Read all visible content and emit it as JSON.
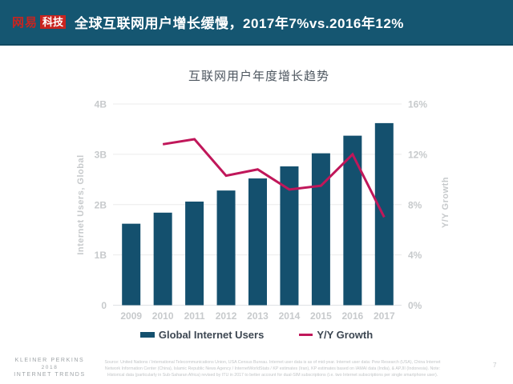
{
  "header": {
    "logo": {
      "brand": "网易",
      "badge": "科技"
    },
    "title": "全球互联网用户增长缓慢，2017年7%vs.2016年12%"
  },
  "chart_data": {
    "type": "combo-bar-line",
    "title": "互联网用户年度增长趋势",
    "categories": [
      "2009",
      "2010",
      "2011",
      "2012",
      "2013",
      "2014",
      "2015",
      "2016",
      "2017"
    ],
    "series": [
      {
        "name": "Global Internet Users",
        "type": "bar",
        "axis": "left",
        "color": "#14506e",
        "values": [
          1.62,
          1.84,
          2.06,
          2.28,
          2.52,
          2.76,
          3.02,
          3.37,
          3.62
        ]
      },
      {
        "name": "Y/Y Growth",
        "type": "line",
        "axis": "right",
        "color": "#c0175a",
        "categories": [
          "2010",
          "2011",
          "2012",
          "2013",
          "2014",
          "2015",
          "2016",
          "2017"
        ],
        "values": [
          12.8,
          13.2,
          10.3,
          10.8,
          9.2,
          9.5,
          12.0,
          7.0
        ]
      }
    ],
    "left_axis": {
      "label": "Internet Users, Global",
      "min": 0,
      "max": 4,
      "unit": "B",
      "ticks": [
        "4B",
        "3B",
        "2B",
        "1B",
        "0"
      ]
    },
    "right_axis": {
      "label": "Y/Y Growth",
      "min": 0,
      "max": 16,
      "unit": "%",
      "ticks": [
        "16%",
        "12%",
        "8%",
        "4%",
        "0%"
      ]
    },
    "legend": {
      "position": "bottom",
      "entries": [
        "Global Internet Users",
        "Y/Y Growth"
      ]
    },
    "grid": true
  },
  "footer": {
    "brand_line1": "KLEINER PERKINS",
    "brand_line2": "2018",
    "brand_line3": "INTERNET TRENDS",
    "source": "Source: United Nations / International Telecommunications Union, USA Census Bureau. Internet user data is as of mid-year. Internet user data: Pew Research (USA), China Internet Network Information Center (China), Islamic Republic News Agency / InternetWorldStats / KP estimates (Iran), KP estimates based on IAMAI data (India), & APJII (Indonesia). Note: Historical data (particularly in Sub-Saharan Africa) revised by ITU in 2017 to better account for dual-SIM subscriptions (i.e. two Internet subscriptions per single smartphone user).",
    "page_number": "7"
  }
}
